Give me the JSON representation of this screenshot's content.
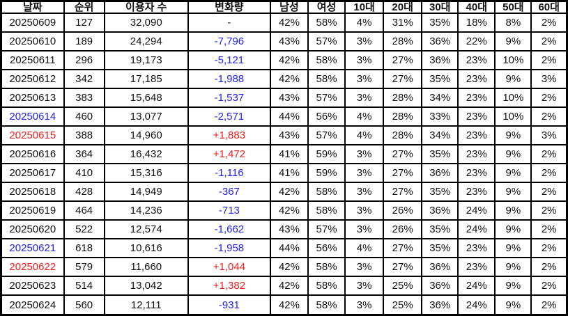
{
  "colors": {
    "blue": "#2121f0",
    "red": "#f71b1b",
    "default": "#111111",
    "border": "#000000",
    "background": "#ffffff"
  },
  "chart_data": {
    "type": "table",
    "columns": [
      "날짜",
      "순위",
      "이용자 수",
      "변화량",
      "남성",
      "여성",
      "10대",
      "20대",
      "30대",
      "40대",
      "50대",
      "60대"
    ],
    "column_keys": [
      "date",
      "rank",
      "users",
      "change",
      "male",
      "female",
      "age10",
      "age20",
      "age30",
      "age40",
      "age50",
      "age60"
    ],
    "rows": [
      {
        "cells": [
          "20250609",
          "127",
          "32,090",
          "-",
          "42%",
          "58%",
          "4%",
          "31%",
          "35%",
          "18%",
          "8%",
          "2%"
        ],
        "date_color": "default",
        "change_color": "default"
      },
      {
        "cells": [
          "20250610",
          "189",
          "24,294",
          "-7,796",
          "43%",
          "57%",
          "3%",
          "28%",
          "36%",
          "22%",
          "9%",
          "2%"
        ],
        "date_color": "default",
        "change_color": "blue"
      },
      {
        "cells": [
          "20250611",
          "296",
          "19,173",
          "-5,121",
          "42%",
          "58%",
          "3%",
          "27%",
          "36%",
          "23%",
          "10%",
          "2%"
        ],
        "date_color": "default",
        "change_color": "blue"
      },
      {
        "cells": [
          "20250612",
          "342",
          "17,185",
          "-1,988",
          "42%",
          "58%",
          "3%",
          "27%",
          "35%",
          "23%",
          "9%",
          "3%"
        ],
        "date_color": "default",
        "change_color": "blue"
      },
      {
        "cells": [
          "20250613",
          "383",
          "15,648",
          "-1,537",
          "43%",
          "57%",
          "3%",
          "28%",
          "34%",
          "23%",
          "10%",
          "2%"
        ],
        "date_color": "default",
        "change_color": "blue"
      },
      {
        "cells": [
          "20250614",
          "460",
          "13,077",
          "-2,571",
          "44%",
          "56%",
          "4%",
          "28%",
          "33%",
          "23%",
          "10%",
          "2%"
        ],
        "date_color": "blue",
        "change_color": "blue"
      },
      {
        "cells": [
          "20250615",
          "388",
          "14,960",
          "+1,883",
          "43%",
          "57%",
          "4%",
          "28%",
          "34%",
          "23%",
          "9%",
          "3%"
        ],
        "date_color": "red",
        "change_color": "red"
      },
      {
        "cells": [
          "20250616",
          "364",
          "16,432",
          "+1,472",
          "41%",
          "59%",
          "3%",
          "27%",
          "35%",
          "23%",
          "9%",
          "2%"
        ],
        "date_color": "default",
        "change_color": "red"
      },
      {
        "cells": [
          "20250617",
          "410",
          "15,316",
          "-1,116",
          "41%",
          "59%",
          "3%",
          "27%",
          "36%",
          "23%",
          "9%",
          "2%"
        ],
        "date_color": "default",
        "change_color": "blue"
      },
      {
        "cells": [
          "20250618",
          "428",
          "14,949",
          "-367",
          "42%",
          "58%",
          "3%",
          "27%",
          "35%",
          "23%",
          "9%",
          "2%"
        ],
        "date_color": "default",
        "change_color": "blue"
      },
      {
        "cells": [
          "20250619",
          "464",
          "14,236",
          "-713",
          "42%",
          "58%",
          "3%",
          "26%",
          "36%",
          "24%",
          "9%",
          "2%"
        ],
        "date_color": "default",
        "change_color": "blue"
      },
      {
        "cells": [
          "20250620",
          "522",
          "12,574",
          "-1,662",
          "43%",
          "57%",
          "3%",
          "26%",
          "35%",
          "24%",
          "9%",
          "2%"
        ],
        "date_color": "default",
        "change_color": "blue"
      },
      {
        "cells": [
          "20250621",
          "618",
          "10,616",
          "-1,958",
          "44%",
          "56%",
          "4%",
          "27%",
          "35%",
          "23%",
          "9%",
          "2%"
        ],
        "date_color": "blue",
        "change_color": "blue"
      },
      {
        "cells": [
          "20250622",
          "579",
          "11,660",
          "+1,044",
          "42%",
          "58%",
          "3%",
          "27%",
          "36%",
          "23%",
          "9%",
          "2%"
        ],
        "date_color": "red",
        "change_color": "red"
      },
      {
        "cells": [
          "20250623",
          "514",
          "13,042",
          "+1,382",
          "42%",
          "58%",
          "3%",
          "25%",
          "36%",
          "24%",
          "9%",
          "2%"
        ],
        "date_color": "default",
        "change_color": "red"
      },
      {
        "cells": [
          "20250624",
          "560",
          "12,111",
          "-931",
          "42%",
          "58%",
          "3%",
          "25%",
          "36%",
          "24%",
          "9%",
          "2%"
        ],
        "date_color": "default",
        "change_color": "blue"
      }
    ]
  }
}
